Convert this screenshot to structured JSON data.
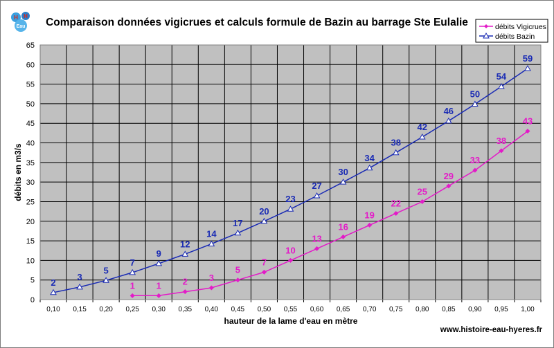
{
  "chart_data": {
    "type": "line",
    "title": "Comparaison données vigicrues et calculs formule de Bazin au barrage Ste Eulalie",
    "xlabel": "hauteur de la lame d'eau en mètre",
    "ylabel": "débits en m3/s",
    "footer": "www.histoire-eau-hyeres.fr",
    "logo_text": [
      "H",
      "Eau",
      "H"
    ],
    "ylim": [
      0,
      65
    ],
    "ytick_step": 5,
    "grid": true,
    "legend_position": "top-right",
    "categories": [
      "0,10",
      "0,15",
      "0,20",
      "0,25",
      "0,30",
      "0,35",
      "0,40",
      "0,45",
      "0,50",
      "0,55",
      "0,60",
      "0,65",
      "0,70",
      "0,75",
      "0,80",
      "0,85",
      "0,90",
      "0,95",
      "1,00"
    ],
    "series": [
      {
        "name": "débits Vigicrues",
        "color": "#e31bc8",
        "marker": "diamond",
        "values": [
          null,
          null,
          null,
          1,
          1,
          2,
          3,
          5,
          7,
          10,
          13,
          16,
          19,
          22,
          25,
          29,
          33,
          38,
          43
        ],
        "labels": [
          "",
          "",
          "",
          "1",
          "1",
          "2",
          "3",
          "5",
          "7",
          "10",
          "13",
          "16",
          "19",
          "22",
          "25",
          "29",
          "33",
          "38",
          "43"
        ]
      },
      {
        "name": "débits Bazin",
        "color": "#1a2bb4",
        "marker": "triangle",
        "values": [
          1.8,
          3.2,
          4.9,
          6.9,
          9.2,
          11.6,
          14.2,
          17.0,
          20.0,
          23.1,
          26.5,
          30.0,
          33.6,
          37.5,
          41.5,
          45.6,
          49.9,
          54.4,
          59.0
        ],
        "labels": [
          "2",
          "3",
          "5",
          "7",
          "9",
          "12",
          "14",
          "17",
          "20",
          "23",
          "27",
          "30",
          "34",
          "38",
          "42",
          "46",
          "50",
          "54",
          "59"
        ]
      }
    ]
  }
}
